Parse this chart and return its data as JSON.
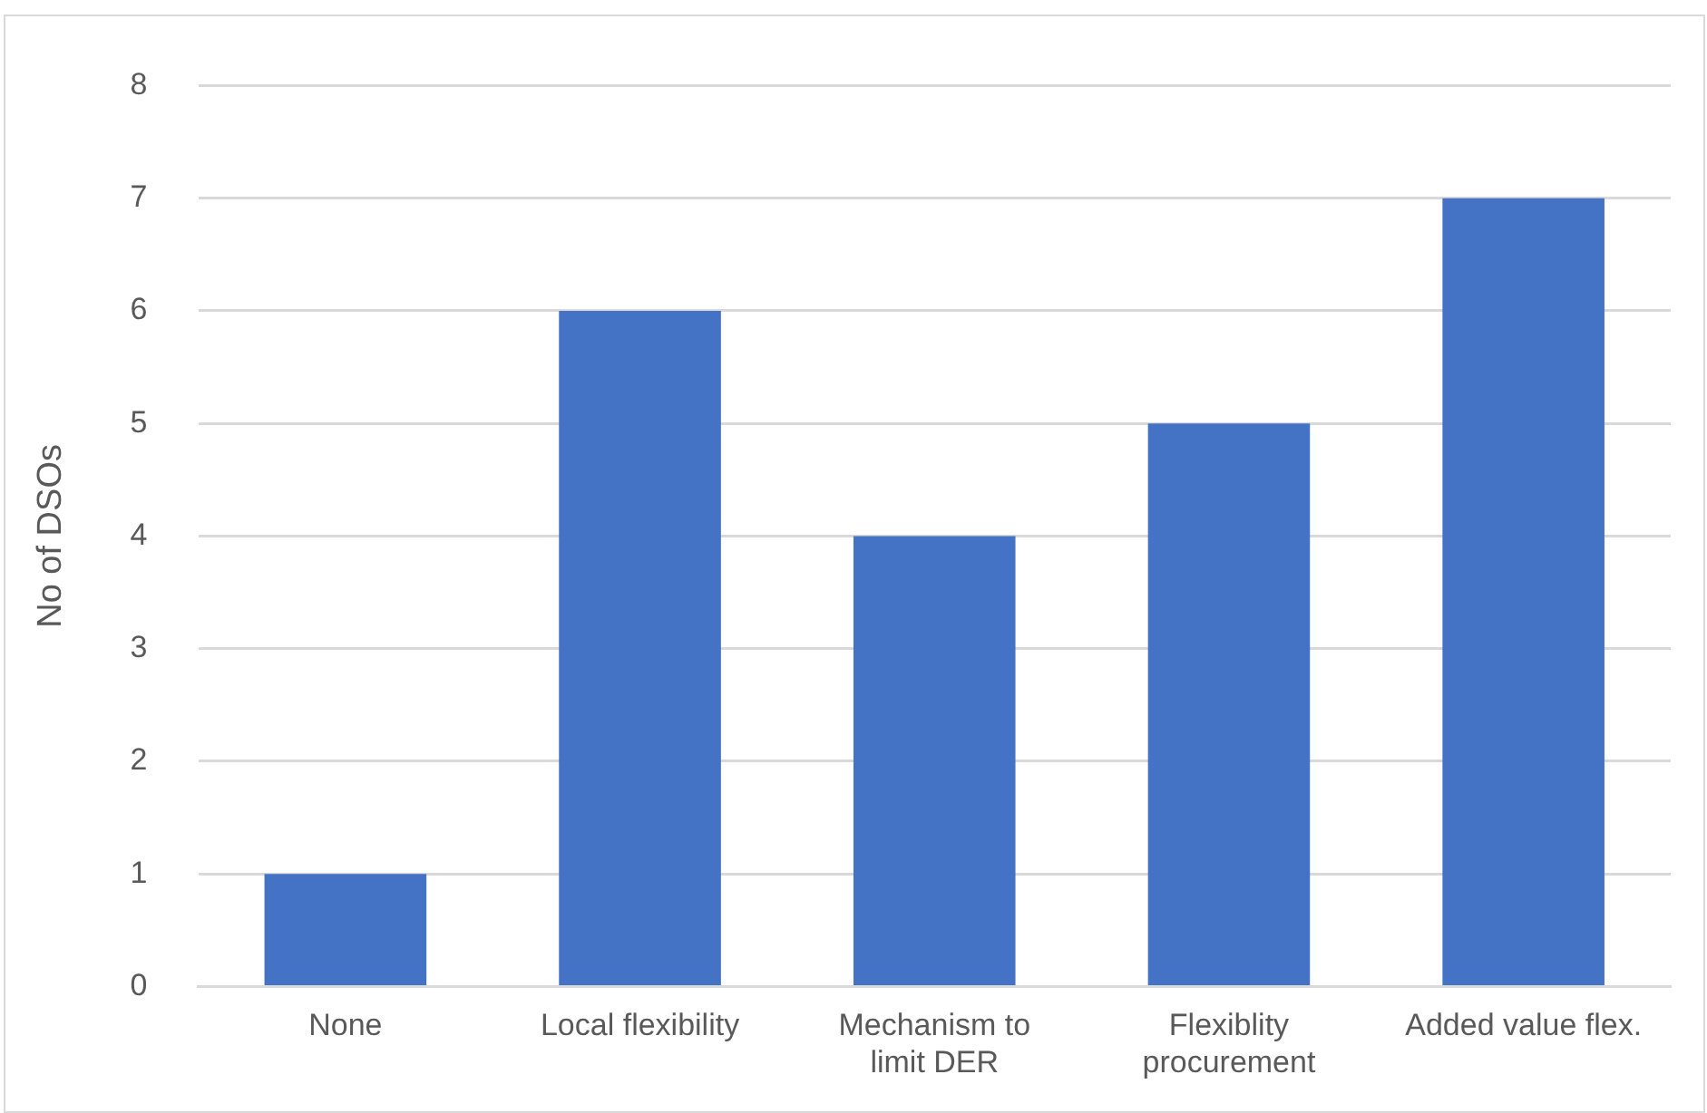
{
  "chart_data": {
    "type": "bar",
    "ylabel": "No of DSOs",
    "categories": [
      "None",
      "Local flexibility",
      "Mechanism to limit DER",
      "Flexiblity procurement",
      "Added value flex."
    ],
    "values": [
      1,
      6,
      4,
      5,
      7
    ],
    "color": "#4472c4",
    "ylim": [
      0,
      8
    ],
    "yticks": [
      0,
      1,
      2,
      3,
      4,
      5,
      6,
      7,
      8
    ],
    "grid": "y",
    "legend": false
  }
}
